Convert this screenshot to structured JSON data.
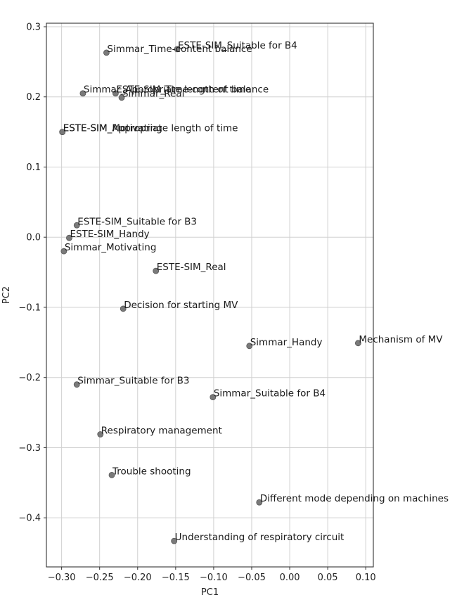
{
  "chart_data": {
    "type": "scatter",
    "xlabel": "PC1",
    "ylabel": "PC2",
    "xlim": [
      -0.32,
      0.11
    ],
    "ylim": [
      -0.47,
      0.305
    ],
    "xticks": [
      -0.3,
      -0.25,
      -0.2,
      -0.15,
      -0.1,
      -0.05,
      0.0,
      0.05,
      0.1
    ],
    "xtick_labels": [
      "−0.30",
      "−0.25",
      "−0.20",
      "−0.15",
      "−0.10",
      "−0.05",
      "0.00",
      "0.05",
      "0.10"
    ],
    "yticks": [
      -0.4,
      -0.3,
      -0.2,
      -0.1,
      0.0,
      0.1,
      0.2,
      0.3
    ],
    "ytick_labels": [
      "−0.4",
      "−0.3",
      "−0.2",
      "−0.1",
      "0.0",
      "0.1",
      "0.2",
      "0.3"
    ],
    "grid": true,
    "point_color": "#7a7a7a",
    "points": [
      {
        "label": "ESTE-SIM_Suitable for B4",
        "x": -0.148,
        "y": 0.268
      },
      {
        "label": "Simmar_Time-content balance",
        "x": -0.241,
        "y": 0.263
      },
      {
        "label": "ESTE-SIM_Time-content balance",
        "x": -0.229,
        "y": 0.205
      },
      {
        "label": "Simmar_Appropriate length of time",
        "x": -0.272,
        "y": 0.205
      },
      {
        "label": "Simmar_Real",
        "x": -0.221,
        "y": 0.199
      },
      {
        "label": "ESTE-SIM_Appropriate length of time",
        "x": -0.299,
        "y": 0.15
      },
      {
        "label": "ESTE-SIM_Motivating",
        "x": -0.299,
        "y": 0.15
      },
      {
        "label": "ESTE-SIM_Suitable for B3",
        "x": -0.28,
        "y": 0.017
      },
      {
        "label": "ESTE-SIM_Handy",
        "x": -0.29,
        "y": -0.001
      },
      {
        "label": "Simmar_Motivating",
        "x": -0.297,
        "y": -0.02
      },
      {
        "label": "ESTE-SIM_Real",
        "x": -0.176,
        "y": -0.048
      },
      {
        "label": "Decision for starting MV",
        "x": -0.219,
        "y": -0.102
      },
      {
        "label": "Simmar_Handy",
        "x": -0.053,
        "y": -0.155
      },
      {
        "label": "Mechanism of MV",
        "x": 0.09,
        "y": -0.151
      },
      {
        "label": "Simmar_Suitable for B3",
        "x": -0.28,
        "y": -0.21
      },
      {
        "label": "Simmar_Suitable for B4",
        "x": -0.101,
        "y": -0.228
      },
      {
        "label": "Respiratory management",
        "x": -0.249,
        "y": -0.281
      },
      {
        "label": "Trouble shooting",
        "x": -0.234,
        "y": -0.339
      },
      {
        "label": "Different mode depending on machines",
        "x": -0.04,
        "y": -0.378
      },
      {
        "label": "Understanding of respiratory circuit",
        "x": -0.152,
        "y": -0.433
      }
    ]
  }
}
